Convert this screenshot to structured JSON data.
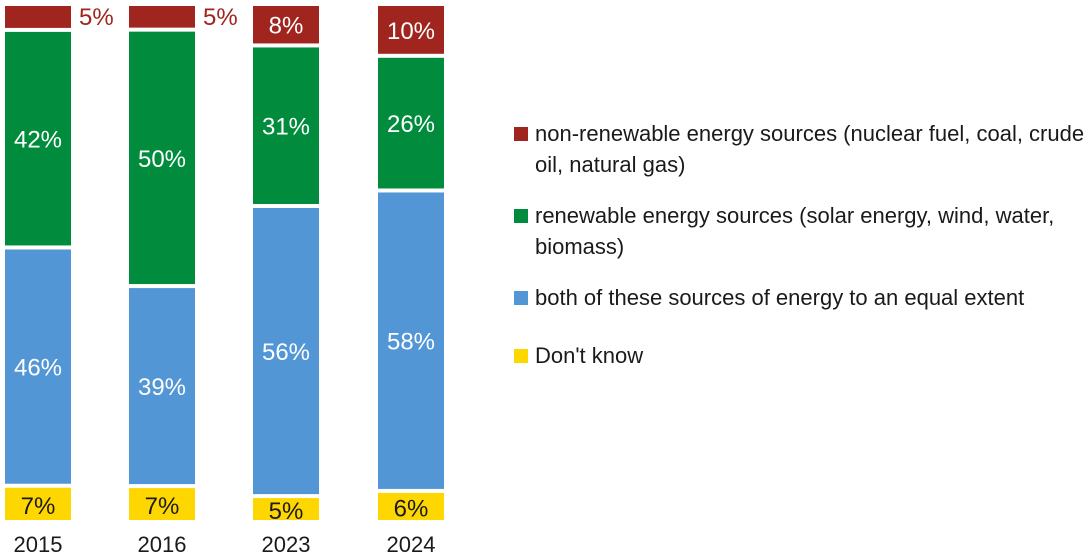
{
  "chart_data": {
    "type": "stacked-bar",
    "categories": [
      "2015",
      "2016",
      "2023",
      "2024"
    ],
    "series": [
      {
        "name": "Don't know",
        "color": "#FFD700",
        "values": [
          7,
          7,
          5,
          6
        ],
        "labels": [
          "7%",
          "7%",
          "5%",
          "6%"
        ]
      },
      {
        "name": "both of these sources of energy to an equal extent",
        "color": "#5296D5",
        "values": [
          46,
          39,
          56,
          58
        ],
        "labels": [
          "46%",
          "39%",
          "56%",
          "58%"
        ]
      },
      {
        "name": "renewable energy sources (solar energy, wind, water, biomass)",
        "color": "#008C3C",
        "values": [
          42,
          50,
          31,
          26
        ],
        "labels": [
          "42%",
          "50%",
          "31%",
          "26%"
        ]
      },
      {
        "name": "non-renewable energy sources (nuclear fuel, coal, crude oil, natural gas)",
        "color": "#A0251E",
        "values": [
          5,
          5,
          8,
          10
        ],
        "labels": [
          "5%",
          "5%",
          "8%",
          "10%"
        ]
      }
    ],
    "legend": [
      {
        "label": "non-renewable energy sources (nuclear fuel, coal, crude oil, natural gas)",
        "color": "#A0251E"
      },
      {
        "label": "renewable energy sources (solar energy, wind, water, biomass)",
        "color": "#008C3C"
      },
      {
        "label": "both of these sources of energy to an equal extent",
        "color": "#5296D5"
      },
      {
        "label": "Don't know",
        "color": "#FFD700"
      }
    ],
    "legend_position": "right",
    "title": "",
    "xlabel": "",
    "ylabel": "",
    "ylim": [
      0,
      100
    ],
    "grid": false
  }
}
